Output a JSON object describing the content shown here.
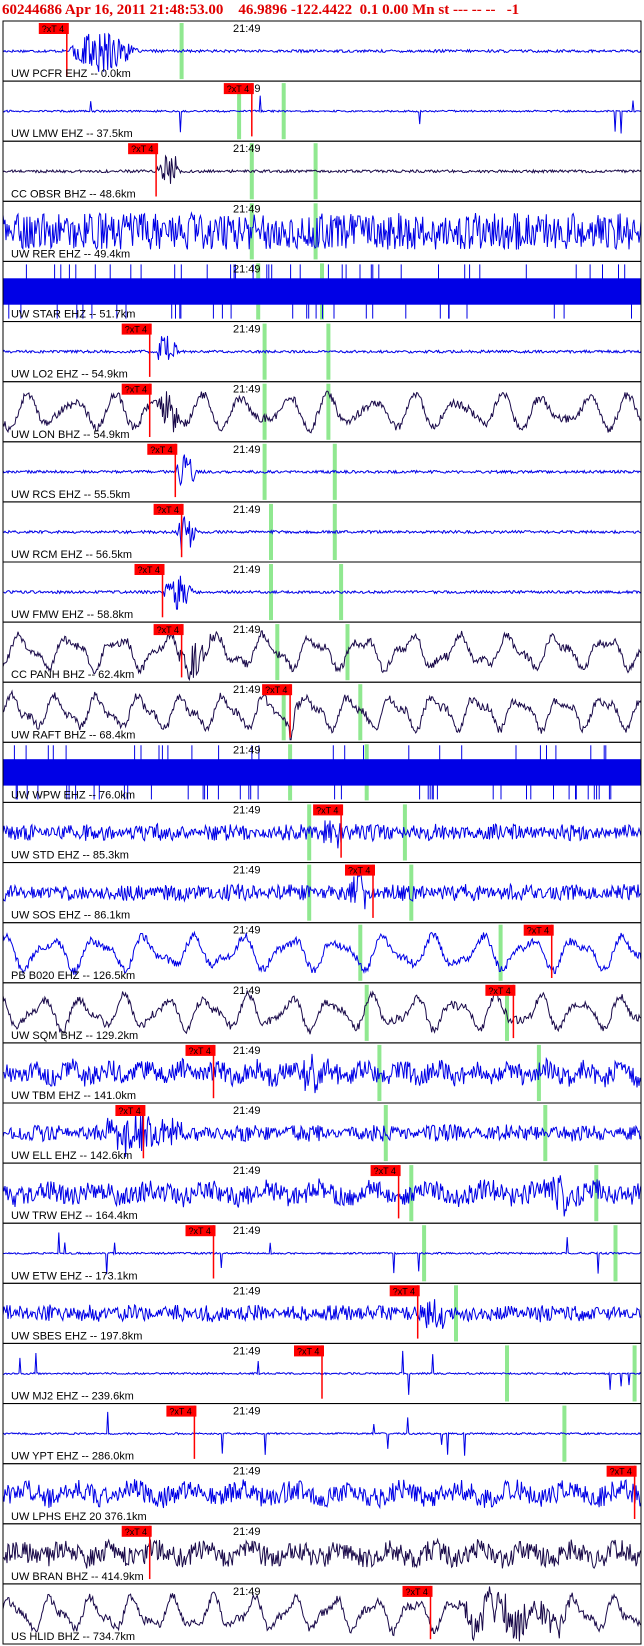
{
  "header": {
    "text": "60244686 Apr 16, 2011 21:48:53.00    46.9896 -122.4422  0.1 0.00 Mn st --- -- --   -1"
  },
  "chart_data": {
    "type": "seismogram",
    "time_label": "21:49",
    "pick_label": "?xT 4",
    "colors": {
      "header": "#e00000",
      "trace_blue": "#0000e6",
      "trace_dark": "#1a0a4a",
      "pick_red": "#ff0000",
      "marker_green": "#90e890",
      "frame": "#000000"
    },
    "panels": [
      {
        "label": "UW PCFR EHZ -- 0.0km",
        "trace": "event",
        "color": "trace_blue",
        "pick": 0.1,
        "greens": [
          0.28
        ],
        "event": [
          0.1,
          0.26
        ]
      },
      {
        "label": "UW LMW EHZ -- 37.5km",
        "trace": "spiky",
        "color": "trace_blue",
        "pick": 0.39,
        "greens": [
          0.37,
          0.44
        ],
        "event": null
      },
      {
        "label": "CC OBSR BHZ -- 48.6km",
        "trace": "event",
        "color": "trace_dark",
        "pick": 0.24,
        "greens": [
          0.39,
          0.49
        ],
        "event": [
          0.24,
          0.3
        ]
      },
      {
        "label": "UW RER EHZ -- 49.4km",
        "trace": "dense",
        "color": "trace_blue",
        "pick": null,
        "greens": [
          0.39,
          0.49
        ],
        "event": null
      },
      {
        "label": "UW STAR EHZ -- 51.7km",
        "trace": "saturated",
        "color": "trace_blue",
        "pick": null,
        "greens": [
          0.4,
          0.5
        ],
        "event": null
      },
      {
        "label": "UW LO2 EHZ -- 54.9km",
        "trace": "event",
        "color": "trace_blue",
        "pick": 0.23,
        "greens": [
          0.41,
          0.51
        ],
        "event": [
          0.24,
          0.29
        ]
      },
      {
        "label": "UW LON BHZ -- 54.9km",
        "trace": "wave",
        "color": "trace_dark",
        "pick": 0.23,
        "greens": [
          0.41,
          0.51
        ],
        "event": [
          0.24,
          0.3
        ]
      },
      {
        "label": "UW RCS EHZ -- 55.5km",
        "trace": "event",
        "color": "trace_blue",
        "pick": 0.27,
        "greens": [
          0.41,
          0.52
        ],
        "event": [
          0.27,
          0.32
        ]
      },
      {
        "label": "UW RCM EHZ -- 56.5km",
        "trace": "event",
        "color": "trace_blue",
        "pick": 0.28,
        "greens": [
          0.42,
          0.52
        ],
        "event": [
          0.27,
          0.32
        ]
      },
      {
        "label": "UW FMW EHZ -- 58.8km",
        "trace": "event",
        "color": "trace_blue",
        "pick": 0.25,
        "greens": [
          0.42,
          0.53
        ],
        "event": [
          0.25,
          0.32
        ]
      },
      {
        "label": "CC PANH BHZ -- 62.4km",
        "trace": "wave",
        "color": "trace_dark",
        "pick": 0.28,
        "greens": [
          0.43,
          0.54
        ],
        "event": [
          0.27,
          0.36
        ]
      },
      {
        "label": "UW RAFT BHZ -- 68.4km",
        "trace": "wave",
        "color": "trace_dark",
        "pick": 0.45,
        "greens": [
          0.44,
          0.56
        ],
        "event": [
          0.44,
          0.48
        ]
      },
      {
        "label": "UW WPW EHZ -- 76.0km",
        "trace": "saturated",
        "color": "trace_blue",
        "pick": null,
        "greens": [
          0.45,
          0.57
        ],
        "event": null
      },
      {
        "label": "UW STD EHZ -- 85.3km",
        "trace": "burst",
        "color": "trace_blue",
        "pick": 0.53,
        "greens": [
          0.48,
          0.63
        ],
        "event": [
          0.5,
          0.55
        ]
      },
      {
        "label": "UW SOS EHZ -- 86.1km",
        "trace": "burst",
        "color": "trace_blue",
        "pick": 0.58,
        "greens": [
          0.48,
          0.64
        ],
        "event": [
          0.54,
          0.59
        ]
      },
      {
        "label": "PB B020 EHZ -- 126.5km",
        "trace": "wave",
        "color": "trace_blue",
        "pick": 0.86,
        "greens": [
          0.56,
          0.78
        ],
        "event": null
      },
      {
        "label": "UW SQM BHZ -- 129.2km",
        "trace": "wave",
        "color": "trace_dark",
        "pick": 0.8,
        "greens": [
          0.57,
          0.79
        ],
        "event": null
      },
      {
        "label": "UW TBM EHZ -- 141.0km",
        "trace": "noisy",
        "color": "trace_blue",
        "pick": 0.33,
        "greens": [
          0.59,
          0.84
        ],
        "event": [
          0.45,
          0.55
        ]
      },
      {
        "label": "UW ELL EHZ -- 142.6km",
        "trace": "burst",
        "color": "trace_blue",
        "pick": 0.22,
        "greens": [
          0.6,
          0.85
        ],
        "event": [
          0.14,
          0.38
        ]
      },
      {
        "label": "UW TRW EHZ -- 164.4km",
        "trace": "noisy",
        "color": "trace_blue",
        "pick": 0.62,
        "greens": [
          0.64,
          0.93
        ],
        "event": [
          0.86,
          0.9
        ]
      },
      {
        "label": "UW ETW EHZ -- 173.1km",
        "trace": "spiky",
        "color": "trace_blue",
        "pick": 0.33,
        "greens": [
          0.66,
          0.96
        ],
        "event": null
      },
      {
        "label": "UW SBES EHZ -- 197.8km",
        "trace": "burst",
        "color": "trace_blue",
        "pick": 0.65,
        "greens": [
          0.71
        ],
        "event": [
          0.65,
          0.73
        ]
      },
      {
        "label": "UW MJ2 EHZ -- 239.6km",
        "trace": "spiky",
        "color": "trace_blue",
        "pick": 0.5,
        "greens": [
          0.79,
          0.99
        ],
        "event": null
      },
      {
        "label": "UW YPT EHZ -- 286.0km",
        "trace": "spiky",
        "color": "trace_blue",
        "pick": 0.3,
        "greens": [
          0.88
        ],
        "event": null
      },
      {
        "label": "UW LPHS EHZ 20 376.1km",
        "trace": "noisy",
        "color": "trace_blue",
        "pick": 0.99,
        "greens": [],
        "event": null
      },
      {
        "label": "UW BRAN BHZ -- 414.9km",
        "trace": "noisy",
        "color": "trace_dark",
        "pick": 0.23,
        "greens": [],
        "event": null
      },
      {
        "label": "US HLID BHZ -- 734.7km",
        "trace": "wave",
        "color": "trace_dark",
        "pick": 0.67,
        "greens": [],
        "event": [
          0.7,
          1.0
        ]
      }
    ]
  }
}
